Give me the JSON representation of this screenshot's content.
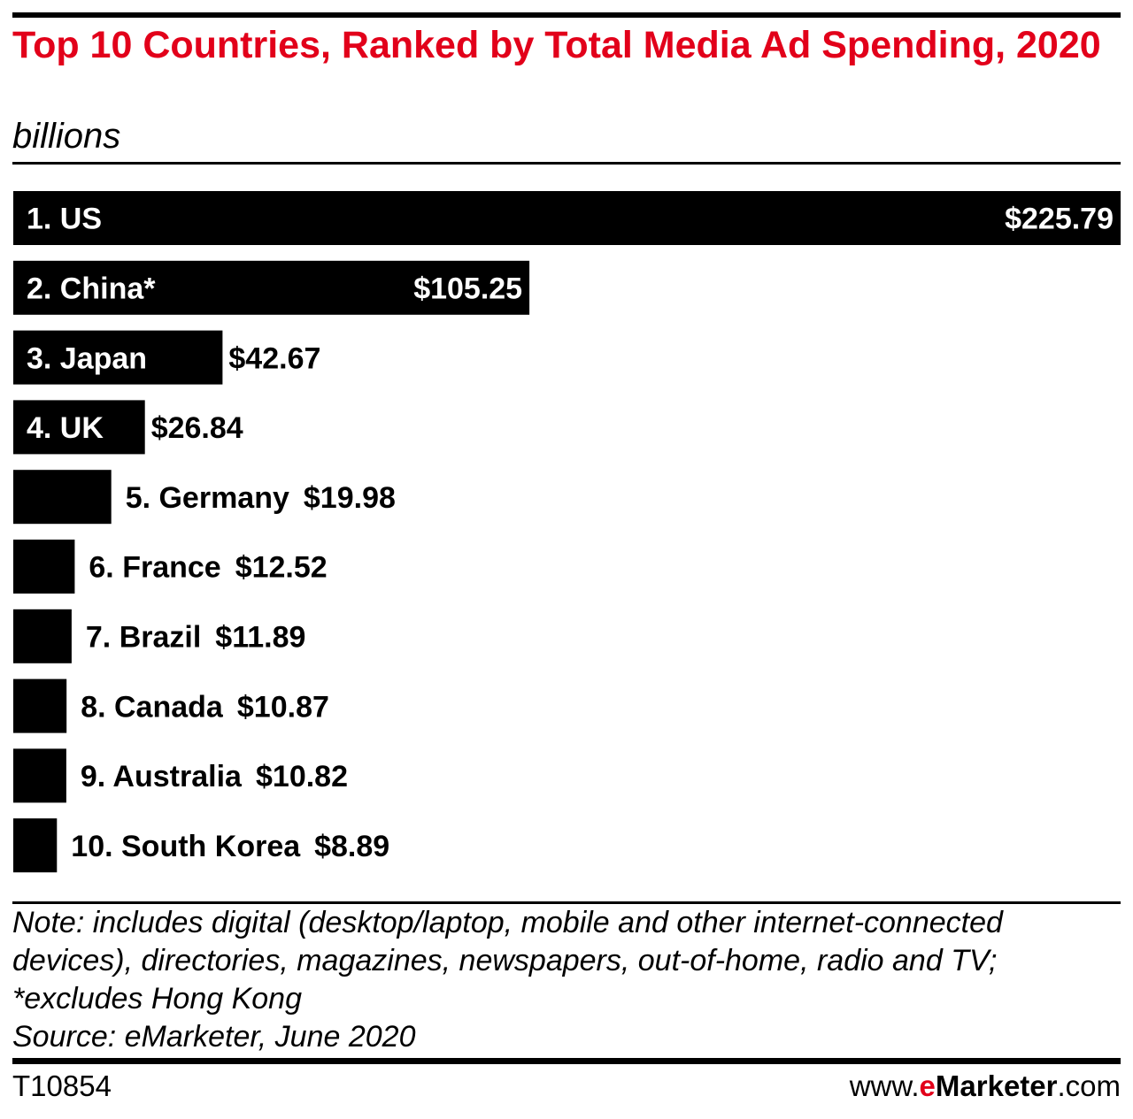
{
  "header": {
    "title": "Top 10 Countries, Ranked by Total Media Ad Spending, 2020",
    "subtitle": "billions"
  },
  "chart_data": {
    "type": "bar",
    "orientation": "horizontal",
    "title": "Top 10 Countries, Ranked by Total Media Ad Spending, 2020",
    "unit": "billions",
    "xlabel": "",
    "ylabel": "",
    "grid": false,
    "xlim": [
      0,
      225.79
    ],
    "categories": [
      "1. US",
      "2. China*",
      "3. Japan",
      "4. UK",
      "5. Germany",
      "6. France",
      "7. Brazil",
      "8. Canada",
      "9. Australia",
      "10. South Korea"
    ],
    "values": [
      225.79,
      105.25,
      42.67,
      26.84,
      19.98,
      12.52,
      11.89,
      10.87,
      10.82,
      8.89
    ],
    "value_labels": [
      "$225.79",
      "$105.25",
      "$42.67",
      "$26.84",
      "$19.98",
      "$12.52",
      "$11.89",
      "$10.87",
      "$10.82",
      "$8.89"
    ],
    "bar_color": "#000000"
  },
  "footer": {
    "note_lines": [
      "Note: includes digital (desktop/laptop, mobile and other internet-connected",
      "devices), directories, magazines, newspapers, out-of-home, radio and TV;",
      "*excludes Hong Kong",
      "Source: eMarketer, June 2020"
    ],
    "chart_id": "T10854",
    "brand": {
      "prefix": "www.",
      "e": "e",
      "name": "Marketer",
      "suffix": ".com"
    }
  },
  "colors": {
    "title": "#e2001a",
    "brand_accent": "#e2001a",
    "bars": "#000000",
    "rules": "#000000"
  }
}
